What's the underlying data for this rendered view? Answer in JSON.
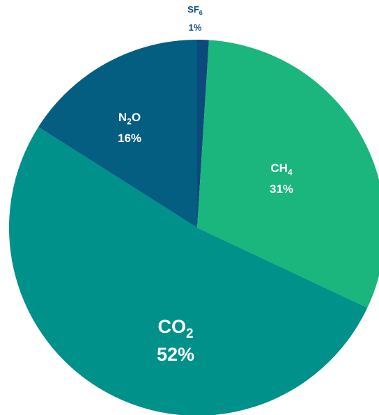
{
  "chart_data": {
    "type": "pie",
    "title": "",
    "slices": [
      {
        "name": "SF6",
        "label_main": "SF",
        "label_sub": "6",
        "label_tail": "",
        "value": 1,
        "value_label": "1%",
        "color": "#0D4A7C"
      },
      {
        "name": "CH4",
        "label_main": "CH",
        "label_sub": "4",
        "label_tail": "",
        "value": 31,
        "value_label": "31%",
        "color": "#1BB57E"
      },
      {
        "name": "CO2",
        "label_main": "CO",
        "label_sub": "2",
        "label_tail": "",
        "value": 52,
        "value_label": "52%",
        "color": "#00918A"
      },
      {
        "name": "N2O",
        "label_main": "N",
        "label_sub": "2",
        "label_tail": "O",
        "value": 16,
        "value_label": "16%",
        "color": "#045E82"
      }
    ],
    "label_colors": {
      "inside": "#ffffff",
      "outside": "#0D4A7C"
    }
  }
}
